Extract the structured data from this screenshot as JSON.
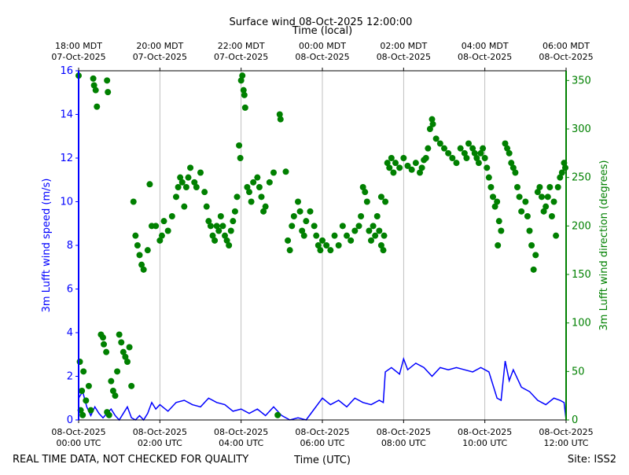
{
  "chart_data": {
    "type": "line",
    "title": "Surface wind 08-Oct-2025 12:00:00",
    "x2label": "Time (local)",
    "xlabel": "Time (UTC)",
    "ylabel": "3m Lufft wind speed (m/s)",
    "y2label": "3m Lufft wind direction (degrees)",
    "note": "REAL TIME DATA, NOT CHECKED FOR QUALITY",
    "site": "Site: ISS2",
    "xlim": [
      0,
      12
    ],
    "xticks": [
      {
        "value": 0,
        "label": "08-Oct-2025\n00:00 UTC"
      },
      {
        "value": 2,
        "label": "08-Oct-2025\n02:00 UTC"
      },
      {
        "value": 4,
        "label": "08-Oct-2025\n04:00 UTC"
      },
      {
        "value": 6,
        "label": "08-Oct-2025\n06:00 UTC"
      },
      {
        "value": 8,
        "label": "08-Oct-2025\n08:00 UTC"
      },
      {
        "value": 10,
        "label": "08-Oct-2025\n10:00 UTC"
      },
      {
        "value": 12,
        "label": "08-Oct-2025\n12:00 UTC"
      }
    ],
    "x2ticks": [
      {
        "value": 0,
        "label": "18:00 MDT\n07-Oct-2025"
      },
      {
        "value": 2,
        "label": "20:00 MDT\n07-Oct-2025"
      },
      {
        "value": 4,
        "label": "22:00 MDT\n07-Oct-2025"
      },
      {
        "value": 6,
        "label": "00:00 MDT\n08-Oct-2025"
      },
      {
        "value": 8,
        "label": "02:00 MDT\n08-Oct-2025"
      },
      {
        "value": 10,
        "label": "04:00 MDT\n08-Oct-2025"
      },
      {
        "value": 12,
        "label": "06:00 MDT\n08-Oct-2025"
      }
    ],
    "ylim": [
      0,
      16
    ],
    "yticks": [
      0,
      2,
      4,
      6,
      8,
      10,
      12,
      14,
      16
    ],
    "y2lim": [
      0,
      360
    ],
    "y2ticks": [
      0,
      50,
      100,
      150,
      200,
      250,
      300,
      350
    ],
    "ycolor": "#0000ff",
    "y2color": "#008000",
    "grid": true,
    "series": [
      {
        "type": "line",
        "color": "#0000ff",
        "x": [
          0,
          0.1,
          0.2,
          0.3,
          0.4,
          0.5,
          0.6,
          0.7,
          0.8,
          0.9,
          1.0,
          1.1,
          1.2,
          1.3,
          1.4,
          1.5,
          1.6,
          1.7,
          1.8,
          1.9,
          2.0,
          2.2,
          2.4,
          2.6,
          2.8,
          3.0,
          3.2,
          3.4,
          3.6,
          3.8,
          4.0,
          4.2,
          4.4,
          4.6,
          4.8,
          5.0,
          5.2,
          5.4,
          5.6,
          5.8,
          6.0,
          6.2,
          6.4,
          6.6,
          6.8,
          7.0,
          7.2,
          7.4,
          7.5,
          7.55,
          7.7,
          7.9,
          8.0,
          8.1,
          8.3,
          8.5,
          8.7,
          8.9,
          9.1,
          9.3,
          9.5,
          9.7,
          9.9,
          10.1,
          10.3,
          10.4,
          10.5,
          10.6,
          10.7,
          10.9,
          11.1,
          11.3,
          11.5,
          11.7,
          11.85,
          11.95,
          12.0
        ],
        "values": [
          1.0,
          1.3,
          0.6,
          0.2,
          0.6,
          0.3,
          0.1,
          0.3,
          0.5,
          0.2,
          0.0,
          0.3,
          0.6,
          0.1,
          0.0,
          0.2,
          0.0,
          0.3,
          0.8,
          0.5,
          0.7,
          0.4,
          0.8,
          0.9,
          0.7,
          0.6,
          1.0,
          0.8,
          0.7,
          0.4,
          0.5,
          0.3,
          0.5,
          0.2,
          0.6,
          0.2,
          0.0,
          0.1,
          0.0,
          0.5,
          1.0,
          0.7,
          0.9,
          0.6,
          1.0,
          0.8,
          0.7,
          0.9,
          0.8,
          2.2,
          2.4,
          2.1,
          2.8,
          2.3,
          2.6,
          2.4,
          2.0,
          2.4,
          2.3,
          2.4,
          2.3,
          2.2,
          2.4,
          2.2,
          1.0,
          0.9,
          2.7,
          1.8,
          2.3,
          1.5,
          1.3,
          0.9,
          0.7,
          1.0,
          0.9,
          0.8,
          0.0
        ]
      },
      {
        "type": "scatter",
        "color": "#008000",
        "axis": "y2",
        "x": [
          0.0,
          0.03,
          0.05,
          0.08,
          0.1,
          0.12,
          0.18,
          0.25,
          0.3,
          0.36,
          0.38,
          0.42,
          0.45,
          0.55,
          0.6,
          0.62,
          0.68,
          0.7,
          0.75,
          0.7,
          0.72,
          0.8,
          0.85,
          0.9,
          0.95,
          1.0,
          1.05,
          1.1,
          1.15,
          1.2,
          1.25,
          1.3,
          1.35,
          1.4,
          1.45,
          1.5,
          1.55,
          1.6,
          1.7,
          1.75,
          1.8,
          1.9,
          2.0,
          2.05,
          2.1,
          2.2,
          2.3,
          2.4,
          2.45,
          2.5,
          2.55,
          2.6,
          2.65,
          2.7,
          2.75,
          2.85,
          2.9,
          3.0,
          3.1,
          3.15,
          3.2,
          3.25,
          3.3,
          3.35,
          3.4,
          3.45,
          3.5,
          3.55,
          3.6,
          3.65,
          3.7,
          3.75,
          3.8,
          3.85,
          3.9,
          3.95,
          3.98,
          4.0,
          4.03,
          4.06,
          4.08,
          4.1,
          4.15,
          4.2,
          4.25,
          4.3,
          4.4,
          4.45,
          4.5,
          4.55,
          4.6,
          4.7,
          4.8,
          4.95,
          4.97,
          4.9,
          5.1,
          5.15,
          5.2,
          5.25,
          5.3,
          5.4,
          5.45,
          5.5,
          5.55,
          5.6,
          5.7,
          5.8,
          5.85,
          5.9,
          5.95,
          6.0,
          6.1,
          6.2,
          6.3,
          6.4,
          6.5,
          6.6,
          6.7,
          6.8,
          6.9,
          6.95,
          7.0,
          7.05,
          7.1,
          7.15,
          7.2,
          7.25,
          7.3,
          7.35,
          7.4,
          7.45,
          7.5,
          7.52,
          7.45,
          7.55,
          7.6,
          7.65,
          7.7,
          7.75,
          7.8,
          7.9,
          8.0,
          8.1,
          8.2,
          8.3,
          8.4,
          8.45,
          8.5,
          8.55,
          8.6,
          8.65,
          8.7,
          8.72,
          8.8,
          8.9,
          9.0,
          9.1,
          9.2,
          9.3,
          9.4,
          9.5,
          9.55,
          9.6,
          9.7,
          9.75,
          9.8,
          9.85,
          9.9,
          9.95,
          10.0,
          10.05,
          10.1,
          10.15,
          10.2,
          10.25,
          10.3,
          10.32,
          10.35,
          10.4,
          10.5,
          10.55,
          10.6,
          10.65,
          10.7,
          10.75,
          10.8,
          10.85,
          10.9,
          11.0,
          11.05,
          11.1,
          11.15,
          11.2,
          11.25,
          11.3,
          11.35,
          11.4,
          11.45,
          11.5,
          11.55,
          11.6,
          11.65,
          11.7,
          11.75,
          11.8,
          11.85,
          11.9,
          11.95,
          11.98
        ],
        "values": [
          355,
          60,
          10,
          30,
          5,
          50,
          20,
          35,
          10,
          352,
          345,
          340,
          323,
          88,
          85,
          78,
          70,
          8,
          5,
          350,
          338,
          40,
          30,
          25,
          50,
          88,
          80,
          70,
          65,
          60,
          75,
          35,
          225,
          190,
          180,
          170,
          160,
          155,
          175,
          243,
          200,
          200,
          185,
          190,
          205,
          195,
          210,
          230,
          240,
          250,
          245,
          220,
          240,
          250,
          260,
          245,
          240,
          255,
          235,
          220,
          205,
          200,
          190,
          185,
          200,
          195,
          210,
          200,
          190,
          185,
          180,
          195,
          205,
          215,
          230,
          283,
          270,
          350,
          355,
          340,
          335,
          322,
          240,
          235,
          225,
          245,
          250,
          240,
          230,
          215,
          220,
          245,
          255,
          315,
          310,
          5,
          256,
          185,
          175,
          200,
          210,
          225,
          215,
          195,
          190,
          205,
          215,
          200,
          190,
          180,
          175,
          185,
          180,
          175,
          190,
          180,
          200,
          190,
          185,
          195,
          200,
          210,
          240,
          235,
          225,
          195,
          185,
          200,
          190,
          210,
          195,
          180,
          175,
          190,
          230,
          225,
          265,
          260,
          270,
          255,
          265,
          260,
          270,
          262,
          258,
          265,
          255,
          260,
          268,
          270,
          280,
          300,
          310,
          305,
          290,
          285,
          280,
          275,
          270,
          265,
          280,
          275,
          270,
          285,
          280,
          275,
          270,
          265,
          275,
          280,
          270,
          260,
          250,
          240,
          230,
          220,
          225,
          180,
          205,
          195,
          285,
          280,
          275,
          265,
          260,
          255,
          240,
          230,
          215,
          225,
          210,
          195,
          180,
          155,
          170,
          235,
          240,
          230,
          215,
          220,
          230,
          240,
          210,
          225,
          190,
          240,
          250,
          255,
          265,
          260
        ]
      }
    ]
  }
}
